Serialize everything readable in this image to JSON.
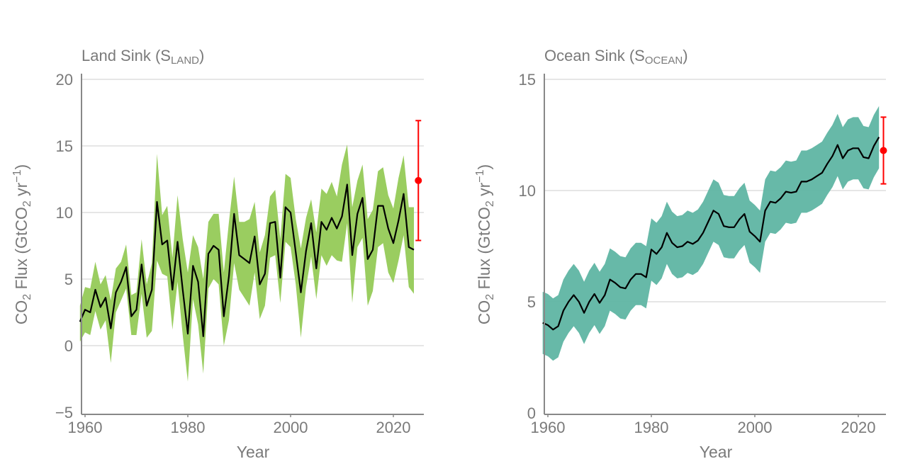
{
  "chart_data": [
    {
      "type": "area",
      "title": {
        "main": "Land Sink (S",
        "sub": "LAND",
        "close": ")"
      },
      "xlabel": "Year",
      "ylabel": {
        "a": "CO",
        "a_sub": "2",
        "b": " Flux (GtCO",
        "b_sub": "2",
        "c": " yr",
        "c_sup": "−1",
        "d": ")"
      },
      "xlim": [
        1959,
        2026
      ],
      "ylim": [
        -5,
        20
      ],
      "xticks": [
        1960,
        1980,
        2000,
        2020
      ],
      "yticks": [
        -5,
        0,
        5,
        10,
        15,
        20
      ],
      "ytick_labels": [
        "−5",
        "0",
        "5",
        "10",
        "15",
        "20"
      ],
      "grid": "horizontal",
      "band_color": "#9ACD60",
      "line_color": "#000000",
      "x": [
        1959,
        1960,
        1961,
        1962,
        1963,
        1964,
        1965,
        1966,
        1967,
        1968,
        1969,
        1970,
        1971,
        1972,
        1973,
        1974,
        1975,
        1976,
        1977,
        1978,
        1979,
        1980,
        1981,
        1982,
        1983,
        1984,
        1985,
        1986,
        1987,
        1988,
        1989,
        1990,
        1991,
        1992,
        1993,
        1994,
        1995,
        1996,
        1997,
        1998,
        1999,
        2000,
        2001,
        2002,
        2003,
        2004,
        2005,
        2006,
        2007,
        2008,
        2009,
        2010,
        2011,
        2012,
        2013,
        2014,
        2015,
        2016,
        2017,
        2018,
        2019,
        2020,
        2021,
        2022,
        2023,
        2024
      ],
      "mean": [
        1.8,
        2.7,
        2.5,
        4.2,
        2.9,
        3.6,
        1.3,
        4.0,
        4.8,
        5.9,
        2.2,
        2.7,
        6.1,
        3.0,
        4.2,
        10.8,
        7.6,
        7.9,
        4.2,
        7.8,
        4.2,
        0.9,
        6.0,
        4.8,
        0.7,
        6.9,
        7.5,
        7.2,
        2.2,
        5.2,
        9.9,
        6.8,
        6.5,
        6.2,
        8.2,
        4.6,
        5.4,
        9.2,
        9.3,
        5.1,
        10.4,
        10.0,
        7.0,
        4.0,
        7.1,
        9.2,
        5.8,
        9.3,
        8.7,
        9.6,
        8.8,
        9.7,
        12.1,
        6.8,
        9.9,
        11.1,
        6.5,
        7.2,
        10.5,
        10.5,
        8.8,
        7.7,
        9.4,
        11.4,
        7.4,
        7.2
      ],
      "upper": [
        3.0,
        4.4,
        4.3,
        6.3,
        4.6,
        5.3,
        3.4,
        5.8,
        6.3,
        7.6,
        3.8,
        4.0,
        8.0,
        4.6,
        6.2,
        14.4,
        9.8,
        10.5,
        6.6,
        11.3,
        8.0,
        5.5,
        8.3,
        7.4,
        5.0,
        9.3,
        9.9,
        9.9,
        5.5,
        9.3,
        12.7,
        9.3,
        9.3,
        9.5,
        10.8,
        7.0,
        8.3,
        11.2,
        11.7,
        8.0,
        12.9,
        12.6,
        9.5,
        7.3,
        9.6,
        11.0,
        8.5,
        11.8,
        11.4,
        12.3,
        11.2,
        13.6,
        15.1,
        10.4,
        12.4,
        13.6,
        9.5,
        10.2,
        13.1,
        13.4,
        11.3,
        10.3,
        12.6,
        14.3,
        10.4,
        10.4
      ],
      "lower": [
        0.3,
        1.0,
        0.8,
        2.6,
        1.2,
        1.9,
        -1.3,
        2.5,
        3.4,
        4.3,
        0.8,
        0.8,
        3.9,
        0.6,
        1.1,
        6.4,
        5.4,
        5.2,
        1.2,
        4.8,
        0.8,
        -2.7,
        3.5,
        1.6,
        -2.1,
        4.3,
        5.0,
        4.6,
        0.0,
        1.9,
        6.2,
        4.2,
        3.6,
        3.0,
        5.5,
        2.0,
        3.0,
        6.6,
        6.8,
        3.2,
        7.8,
        7.4,
        4.6,
        0.6,
        4.4,
        6.7,
        3.5,
        6.8,
        6.0,
        6.8,
        6.4,
        6.3,
        9.2,
        3.2,
        7.4,
        8.1,
        3.0,
        4.1,
        7.4,
        7.7,
        5.5,
        4.7,
        6.4,
        8.3,
        4.4,
        3.9
      ],
      "estimate": {
        "x": 2025,
        "value": 12.4,
        "low": 7.9,
        "high": 16.9,
        "color": "#FF0000"
      }
    },
    {
      "type": "area",
      "title": {
        "main": "Ocean Sink (S",
        "sub": "OCEAN",
        "close": ")"
      },
      "xlabel": "Year",
      "ylabel": {
        "a": "CO",
        "a_sub": "2",
        "b": " Flux (GtCO",
        "b_sub": "2",
        "c": " yr",
        "c_sup": "−1",
        "d": ")"
      },
      "xlim": [
        1959,
        2026
      ],
      "ylim": [
        0,
        15
      ],
      "xticks": [
        1960,
        1980,
        2000,
        2020
      ],
      "yticks": [
        0,
        5,
        10,
        15
      ],
      "ytick_labels": [
        "0",
        "5",
        "10",
        "15"
      ],
      "grid": "horizontal",
      "band_color": "#5FB5A3",
      "line_color": "#000000",
      "band_halfwidth": 1.4,
      "x": [
        1959,
        1960,
        1961,
        1962,
        1963,
        1964,
        1965,
        1966,
        1967,
        1968,
        1969,
        1970,
        1971,
        1972,
        1973,
        1974,
        1975,
        1976,
        1977,
        1978,
        1979,
        1980,
        1981,
        1982,
        1983,
        1984,
        1985,
        1986,
        1987,
        1988,
        1989,
        1990,
        1991,
        1992,
        1993,
        1994,
        1995,
        1996,
        1997,
        1998,
        1999,
        2000,
        2001,
        2002,
        2003,
        2004,
        2005,
        2006,
        2007,
        2008,
        2009,
        2010,
        2011,
        2012,
        2013,
        2014,
        2015,
        2016,
        2017,
        2018,
        2019,
        2020,
        2021,
        2022,
        2023,
        2024
      ],
      "mean": [
        4.05,
        3.95,
        3.75,
        3.9,
        4.6,
        5.0,
        5.3,
        5.0,
        4.5,
        5.0,
        5.35,
        4.95,
        5.3,
        6.0,
        5.85,
        5.65,
        5.6,
        6.0,
        6.25,
        6.25,
        6.1,
        7.35,
        7.15,
        7.45,
        8.1,
        7.65,
        7.45,
        7.5,
        7.7,
        7.6,
        7.75,
        8.1,
        8.6,
        9.1,
        8.95,
        8.4,
        8.35,
        8.35,
        8.7,
        8.95,
        8.15,
        7.95,
        7.7,
        9.1,
        9.5,
        9.45,
        9.65,
        9.95,
        9.9,
        9.95,
        10.4,
        10.4,
        10.5,
        10.65,
        10.8,
        11.2,
        11.55,
        12.05,
        11.45,
        11.8,
        11.9,
        11.9,
        11.5,
        11.45,
        12.0,
        12.4
      ],
      "estimate": {
        "x": 2025,
        "value": 11.8,
        "low": 10.3,
        "high": 13.3,
        "color": "#FF0000"
      }
    }
  ]
}
